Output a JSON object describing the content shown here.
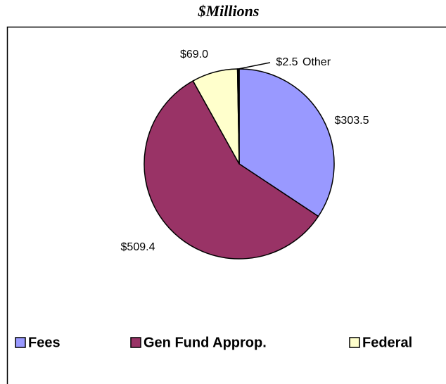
{
  "chart_data": {
    "type": "pie",
    "title": "$Millions",
    "categories": [
      "Fees",
      "Gen Fund Approp.",
      "Federal",
      "Other"
    ],
    "values": [
      303.5,
      509.4,
      69.0,
      2.5
    ],
    "value_labels": [
      "$303.5",
      "$509.4",
      "$69.0",
      "$2.5"
    ],
    "colors": [
      "#9999ff",
      "#993366",
      "#ffffcc",
      "#000000"
    ],
    "legend": [
      true,
      true,
      true,
      false
    ],
    "legend_position": "bottom"
  }
}
